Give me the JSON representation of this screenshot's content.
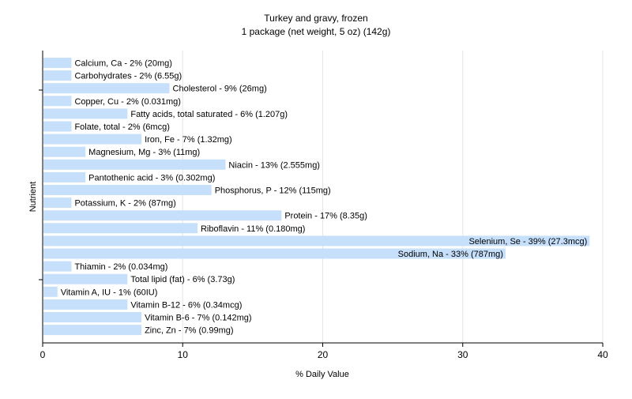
{
  "chart_data": {
    "type": "bar",
    "orientation": "horizontal",
    "title": "Turkey and gravy, frozen",
    "subtitle": "1 package (net weight, 5 oz) (142g)",
    "xlabel": "% Daily Value",
    "ylabel": "Nutrient",
    "xlim": [
      0,
      40
    ],
    "xticks": [
      0,
      10,
      20,
      30,
      40
    ],
    "grid": true,
    "bar_color": "#c6dffb",
    "grid_color": "#e6e6e6",
    "categories": [
      "Calcium, Ca",
      "Carbohydrates",
      "Cholesterol",
      "Copper, Cu",
      "Fatty acids, total saturated",
      "Folate, total",
      "Iron, Fe",
      "Magnesium, Mg",
      "Niacin",
      "Pantothenic acid",
      "Phosphorus, P",
      "Potassium, K",
      "Protein",
      "Riboflavin",
      "Selenium, Se",
      "Sodium, Na",
      "Thiamin",
      "Total lipid (fat)",
      "Vitamin A, IU",
      "Vitamin B-12",
      "Vitamin B-6",
      "Zinc, Zn"
    ],
    "values": [
      2,
      2,
      9,
      2,
      6,
      2,
      7,
      3,
      13,
      3,
      12,
      2,
      17,
      11,
      39,
      33,
      2,
      6,
      1,
      6,
      7,
      7
    ],
    "bar_labels": [
      "Calcium, Ca - 2% (20mg)",
      "Carbohydrates - 2% (6.55g)",
      "Cholesterol - 9% (26mg)",
      "Copper, Cu - 2% (0.031mg)",
      "Fatty acids, total saturated - 6% (1.207g)",
      "Folate, total - 2% (6mcg)",
      "Iron, Fe - 7% (1.32mg)",
      "Magnesium, Mg - 3% (11mg)",
      "Niacin - 13% (2.555mg)",
      "Pantothenic acid - 3% (0.302mg)",
      "Phosphorus, P - 12% (115mg)",
      "Potassium, K - 2% (87mg)",
      "Protein - 17% (8.35g)",
      "Riboflavin - 11% (0.180mg)",
      "Selenium, Se - 39% (27.3mcg)",
      "Sodium, Na - 33% (787mg)",
      "Thiamin - 2% (0.034mg)",
      "Total lipid (fat) - 6% (3.73g)",
      "Vitamin A, IU - 1% (60IU)",
      "Vitamin B-12 - 6% (0.34mcg)",
      "Vitamin B-6 - 7% (0.142mg)",
      "Zinc, Zn - 7% (0.99mg)"
    ]
  }
}
